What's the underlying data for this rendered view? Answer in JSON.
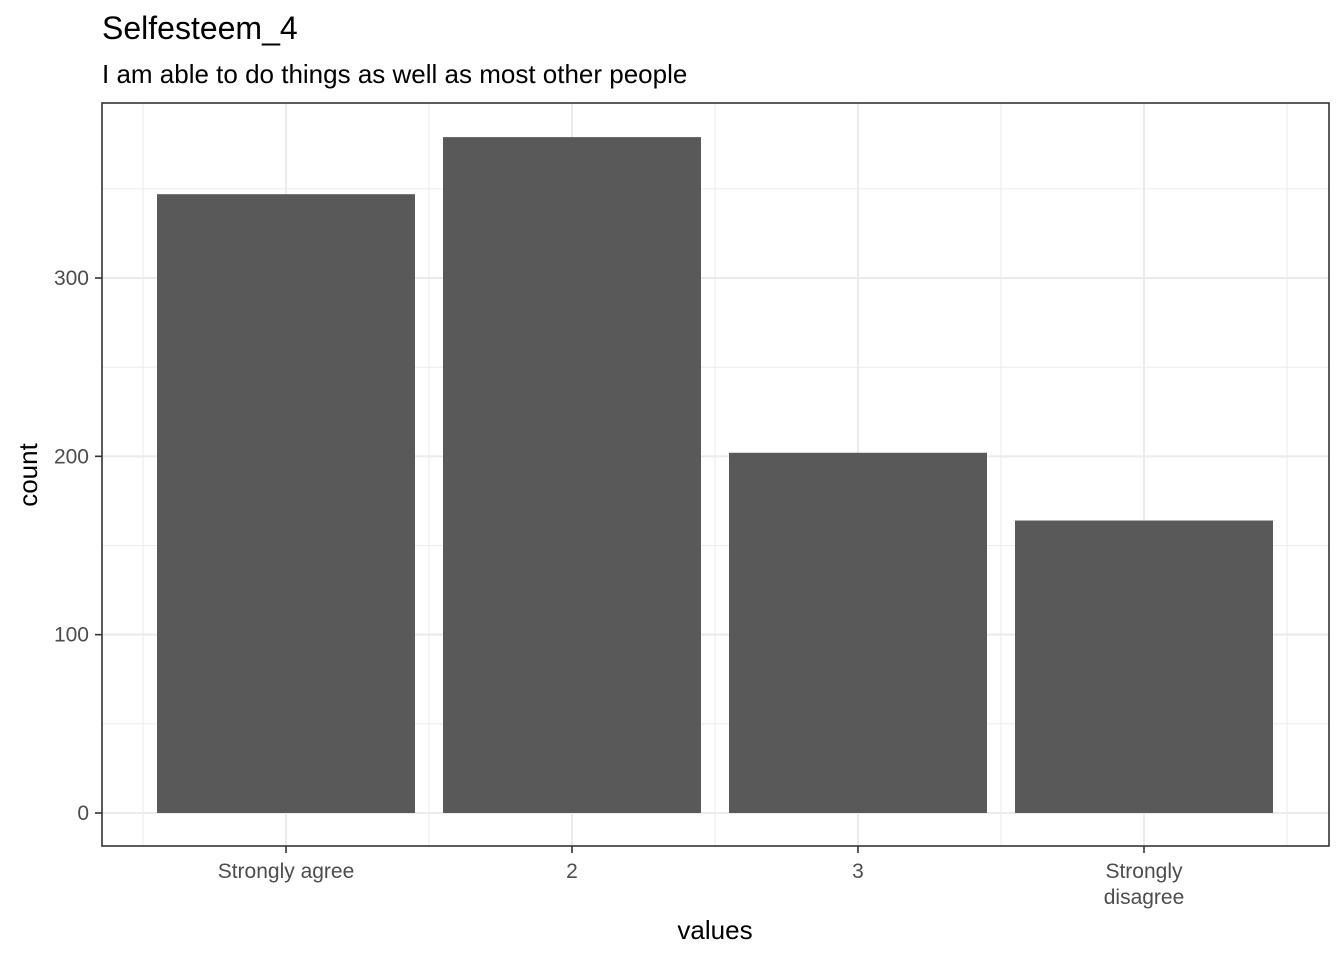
{
  "chart_data": {
    "type": "bar",
    "title": "Selfesteem_4",
    "subtitle": "I am able to do things as well as most other people",
    "xlabel": "values",
    "ylabel": "count",
    "categories": [
      "Strongly agree",
      "2",
      "3",
      "Strongly\ndisagree"
    ],
    "values": [
      347,
      379,
      202,
      164
    ],
    "ylim": [
      0,
      400
    ],
    "yticks": [
      0,
      100,
      200,
      300
    ],
    "grid": true,
    "bar_color": "#595959",
    "panel_border_color": "#333333",
    "grid_color": "#ebebeb"
  }
}
